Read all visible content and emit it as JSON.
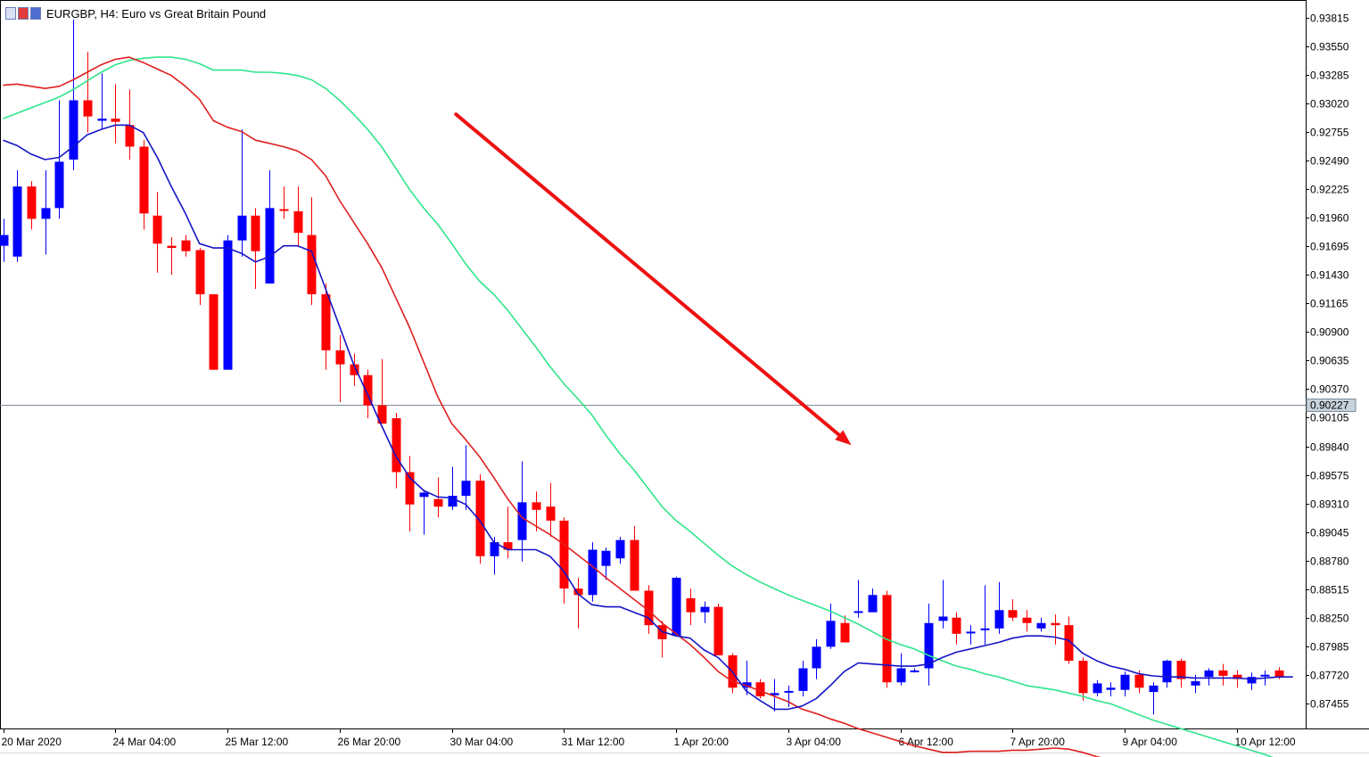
{
  "window": {
    "title": "EURGBP, H4:  Euro vs Great Britain Pound"
  },
  "colors": {
    "bull": "#0000ff",
    "bear": "#ff0000",
    "ma_fast": "#1414c8",
    "ma_mid": "#e01f1f",
    "ma_slow": "#2ee58a",
    "arrow": "#ee1111",
    "grid_axis": "#000000",
    "current_line": "#7d8c99"
  },
  "chart_data": {
    "type": "candlestick",
    "symbol": "EURGBP",
    "timeframe": "H4",
    "current_price": 0.90227,
    "current_price_label": "0.90227",
    "ylim": [
      0.872,
      0.9395
    ],
    "y_ticks": [
      "0.93815",
      "0.93550",
      "0.93285",
      "0.93020",
      "0.92755",
      "0.92490",
      "0.92225",
      "0.91960",
      "0.91695",
      "0.91430",
      "0.91165",
      "0.90900",
      "0.90635",
      "0.90370",
      "0.90105",
      "0.89840",
      "0.89575",
      "0.89310",
      "0.89045",
      "0.88780",
      "0.88515",
      "0.88250",
      "0.87985",
      "0.87720",
      "0.87455"
    ],
    "x_labels": [
      {
        "label": "20 Mar 2020",
        "index": 0
      },
      {
        "label": "24 Mar 04:00",
        "index": 8
      },
      {
        "label": "25 Mar 12:00",
        "index": 16
      },
      {
        "label": "26 Mar 20:00",
        "index": 24
      },
      {
        "label": "30 Mar 04:00",
        "index": 32
      },
      {
        "label": "31 Mar 12:00",
        "index": 40
      },
      {
        "label": "1 Apr 20:00",
        "index": 48
      },
      {
        "label": "3 Apr 04:00",
        "index": 56
      },
      {
        "label": "6 Apr 12:00",
        "index": 64
      },
      {
        "label": "7 Apr 20:00",
        "index": 72
      },
      {
        "label": "9 Apr 04:00",
        "index": 80
      },
      {
        "label": "10 Apr 12:00",
        "index": 88
      }
    ],
    "candles": [
      {
        "o": 0.917,
        "h": 0.9195,
        "l": 0.9155,
        "c": 0.918
      },
      {
        "o": 0.916,
        "h": 0.924,
        "l": 0.9155,
        "c": 0.9225
      },
      {
        "o": 0.9225,
        "h": 0.923,
        "l": 0.9185,
        "c": 0.9195
      },
      {
        "o": 0.9195,
        "h": 0.924,
        "l": 0.9162,
        "c": 0.9205
      },
      {
        "o": 0.9205,
        "h": 0.9305,
        "l": 0.9195,
        "c": 0.9248
      },
      {
        "o": 0.925,
        "h": 0.938,
        "l": 0.924,
        "c": 0.9305
      },
      {
        "o": 0.9305,
        "h": 0.935,
        "l": 0.9275,
        "c": 0.929
      },
      {
        "o": 0.9286,
        "h": 0.933,
        "l": 0.9278,
        "c": 0.9288
      },
      {
        "o": 0.9288,
        "h": 0.932,
        "l": 0.9265,
        "c": 0.9285
      },
      {
        "o": 0.9282,
        "h": 0.9315,
        "l": 0.925,
        "c": 0.9262
      },
      {
        "o": 0.9262,
        "h": 0.9268,
        "l": 0.9185,
        "c": 0.92
      },
      {
        "o": 0.9198,
        "h": 0.922,
        "l": 0.9145,
        "c": 0.9172
      },
      {
        "o": 0.917,
        "h": 0.9178,
        "l": 0.9143,
        "c": 0.9168
      },
      {
        "o": 0.9175,
        "h": 0.918,
        "l": 0.916,
        "c": 0.9165
      },
      {
        "o": 0.9166,
        "h": 0.9168,
        "l": 0.9115,
        "c": 0.9125
      },
      {
        "o": 0.9125,
        "h": 0.9125,
        "l": 0.9055,
        "c": 0.9055
      },
      {
        "o": 0.9055,
        "h": 0.918,
        "l": 0.9055,
        "c": 0.9175
      },
      {
        "o": 0.9175,
        "h": 0.9278,
        "l": 0.916,
        "c": 0.9198
      },
      {
        "o": 0.9198,
        "h": 0.9205,
        "l": 0.913,
        "c": 0.9165
      },
      {
        "o": 0.9135,
        "h": 0.924,
        "l": 0.9135,
        "c": 0.9205
      },
      {
        "o": 0.9204,
        "h": 0.9225,
        "l": 0.9195,
        "c": 0.9203
      },
      {
        "o": 0.9202,
        "h": 0.9225,
        "l": 0.917,
        "c": 0.9182
      },
      {
        "o": 0.918,
        "h": 0.9215,
        "l": 0.9115,
        "c": 0.9125
      },
      {
        "o": 0.9125,
        "h": 0.9135,
        "l": 0.9055,
        "c": 0.9073
      },
      {
        "o": 0.9073,
        "h": 0.9087,
        "l": 0.9025,
        "c": 0.906
      },
      {
        "o": 0.906,
        "h": 0.907,
        "l": 0.904,
        "c": 0.905
      },
      {
        "o": 0.905,
        "h": 0.9055,
        "l": 0.901,
        "c": 0.9022
      },
      {
        "o": 0.9022,
        "h": 0.9065,
        "l": 0.9008,
        "c": 0.9005
      },
      {
        "o": 0.901,
        "h": 0.9015,
        "l": 0.8945,
        "c": 0.896
      },
      {
        "o": 0.896,
        "h": 0.8975,
        "l": 0.8905,
        "c": 0.893
      },
      {
        "o": 0.8937,
        "h": 0.8943,
        "l": 0.8902,
        "c": 0.8941
      },
      {
        "o": 0.8935,
        "h": 0.8955,
        "l": 0.8918,
        "c": 0.8928
      },
      {
        "o": 0.8928,
        "h": 0.8965,
        "l": 0.8925,
        "c": 0.8938
      },
      {
        "o": 0.8938,
        "h": 0.8985,
        "l": 0.8925,
        "c": 0.8952
      },
      {
        "o": 0.8952,
        "h": 0.8958,
        "l": 0.8875,
        "c": 0.8882
      },
      {
        "o": 0.8882,
        "h": 0.89,
        "l": 0.8865,
        "c": 0.8895
      },
      {
        "o": 0.8895,
        "h": 0.8928,
        "l": 0.888,
        "c": 0.8888
      },
      {
        "o": 0.8897,
        "h": 0.897,
        "l": 0.8877,
        "c": 0.8932
      },
      {
        "o": 0.8932,
        "h": 0.8942,
        "l": 0.8905,
        "c": 0.8925
      },
      {
        "o": 0.8928,
        "h": 0.895,
        "l": 0.89,
        "c": 0.8915
      },
      {
        "o": 0.8915,
        "h": 0.8918,
        "l": 0.8838,
        "c": 0.8852
      },
      {
        "o": 0.8852,
        "h": 0.8862,
        "l": 0.8815,
        "c": 0.8846
      },
      {
        "o": 0.8846,
        "h": 0.8895,
        "l": 0.884,
        "c": 0.8888
      },
      {
        "o": 0.8873,
        "h": 0.889,
        "l": 0.886,
        "c": 0.8887
      },
      {
        "o": 0.888,
        "h": 0.89,
        "l": 0.8875,
        "c": 0.8897
      },
      {
        "o": 0.8897,
        "h": 0.891,
        "l": 0.8852,
        "c": 0.885
      },
      {
        "o": 0.885,
        "h": 0.8855,
        "l": 0.881,
        "c": 0.8818
      },
      {
        "o": 0.8818,
        "h": 0.8822,
        "l": 0.8788,
        "c": 0.8805
      },
      {
        "o": 0.8808,
        "h": 0.8863,
        "l": 0.8808,
        "c": 0.8862
      },
      {
        "o": 0.8843,
        "h": 0.8852,
        "l": 0.8818,
        "c": 0.883
      },
      {
        "o": 0.883,
        "h": 0.884,
        "l": 0.882,
        "c": 0.8835
      },
      {
        "o": 0.8835,
        "h": 0.8838,
        "l": 0.879,
        "c": 0.879
      },
      {
        "o": 0.879,
        "h": 0.8792,
        "l": 0.8755,
        "c": 0.876
      },
      {
        "o": 0.876,
        "h": 0.8785,
        "l": 0.8753,
        "c": 0.8765
      },
      {
        "o": 0.8765,
        "h": 0.8768,
        "l": 0.875,
        "c": 0.8752
      },
      {
        "o": 0.8753,
        "h": 0.8768,
        "l": 0.8738,
        "c": 0.8755
      },
      {
        "o": 0.8756,
        "h": 0.8762,
        "l": 0.8742,
        "c": 0.8757
      },
      {
        "o": 0.8757,
        "h": 0.8785,
        "l": 0.8752,
        "c": 0.8778
      },
      {
        "o": 0.8778,
        "h": 0.8805,
        "l": 0.8768,
        "c": 0.8798
      },
      {
        "o": 0.8798,
        "h": 0.8838,
        "l": 0.8796,
        "c": 0.8822
      },
      {
        "o": 0.882,
        "h": 0.8827,
        "l": 0.8802,
        "c": 0.8802
      },
      {
        "o": 0.883,
        "h": 0.886,
        "l": 0.8825,
        "c": 0.8831
      },
      {
        "o": 0.883,
        "h": 0.8852,
        "l": 0.883,
        "c": 0.8846
      },
      {
        "o": 0.8846,
        "h": 0.885,
        "l": 0.876,
        "c": 0.8765
      },
      {
        "o": 0.8765,
        "h": 0.8792,
        "l": 0.8762,
        "c": 0.8778
      },
      {
        "o": 0.8775,
        "h": 0.8778,
        "l": 0.8774,
        "c": 0.8776
      },
      {
        "o": 0.8778,
        "h": 0.8838,
        "l": 0.8762,
        "c": 0.882
      },
      {
        "o": 0.8822,
        "h": 0.886,
        "l": 0.8815,
        "c": 0.8826
      },
      {
        "o": 0.8825,
        "h": 0.883,
        "l": 0.88,
        "c": 0.881
      },
      {
        "o": 0.8812,
        "h": 0.8818,
        "l": 0.88,
        "c": 0.8812
      },
      {
        "o": 0.8814,
        "h": 0.8855,
        "l": 0.88,
        "c": 0.8815
      },
      {
        "o": 0.8815,
        "h": 0.8858,
        "l": 0.881,
        "c": 0.8832
      },
      {
        "o": 0.8832,
        "h": 0.8842,
        "l": 0.8822,
        "c": 0.8825
      },
      {
        "o": 0.8825,
        "h": 0.8832,
        "l": 0.8812,
        "c": 0.882
      },
      {
        "o": 0.8815,
        "h": 0.8825,
        "l": 0.8812,
        "c": 0.882
      },
      {
        "o": 0.882,
        "h": 0.8828,
        "l": 0.88,
        "c": 0.8818
      },
      {
        "o": 0.8818,
        "h": 0.8826,
        "l": 0.8782,
        "c": 0.8785
      },
      {
        "o": 0.8785,
        "h": 0.8788,
        "l": 0.8748,
        "c": 0.8755
      },
      {
        "o": 0.8755,
        "h": 0.8767,
        "l": 0.8752,
        "c": 0.8764
      },
      {
        "o": 0.8758,
        "h": 0.8765,
        "l": 0.8752,
        "c": 0.876
      },
      {
        "o": 0.8758,
        "h": 0.8775,
        "l": 0.8752,
        "c": 0.8772
      },
      {
        "o": 0.8772,
        "h": 0.8776,
        "l": 0.8755,
        "c": 0.876
      },
      {
        "o": 0.8756,
        "h": 0.8765,
        "l": 0.8735,
        "c": 0.8762
      },
      {
        "o": 0.8765,
        "h": 0.8786,
        "l": 0.876,
        "c": 0.8785
      },
      {
        "o": 0.8785,
        "h": 0.8787,
        "l": 0.876,
        "c": 0.8768
      },
      {
        "o": 0.8762,
        "h": 0.8772,
        "l": 0.8755,
        "c": 0.8766
      },
      {
        "o": 0.877,
        "h": 0.8778,
        "l": 0.8762,
        "c": 0.8776
      },
      {
        "o": 0.8776,
        "h": 0.8782,
        "l": 0.8762,
        "c": 0.8771
      },
      {
        "o": 0.8772,
        "h": 0.8776,
        "l": 0.876,
        "c": 0.8768
      },
      {
        "o": 0.8764,
        "h": 0.8774,
        "l": 0.8758,
        "c": 0.877
      },
      {
        "o": 0.8771,
        "h": 0.8776,
        "l": 0.8762,
        "c": 0.8772
      },
      {
        "o": 0.8776,
        "h": 0.8779,
        "l": 0.8768,
        "c": 0.877
      }
    ],
    "ma_fast": [
      0.9268,
      0.9263,
      0.9255,
      0.925,
      0.9252,
      0.9262,
      0.9273,
      0.9278,
      0.9282,
      0.9282,
      0.9275,
      0.9252,
      0.9225,
      0.92,
      0.9172,
      0.9168,
      0.9168,
      0.9163,
      0.9155,
      0.916,
      0.917,
      0.917,
      0.9165,
      0.913,
      0.9095,
      0.906,
      0.9032,
      0.9003,
      0.8975,
      0.8955,
      0.8943,
      0.8937,
      0.8936,
      0.893,
      0.8915,
      0.8895,
      0.8888,
      0.8888,
      0.8888,
      0.8882,
      0.8868,
      0.8847,
      0.8837,
      0.8835,
      0.8835,
      0.883,
      0.8825,
      0.8812,
      0.8808,
      0.8806,
      0.8795,
      0.8788,
      0.8775,
      0.8757,
      0.8748,
      0.874,
      0.874,
      0.8743,
      0.875,
      0.8762,
      0.8775,
      0.8783,
      0.8782,
      0.8781,
      0.878,
      0.878,
      0.8782,
      0.8788,
      0.8793,
      0.8796,
      0.8799,
      0.8802,
      0.8806,
      0.8808,
      0.8808,
      0.8807,
      0.8804,
      0.8792,
      0.8785,
      0.878,
      0.8777,
      0.8773,
      0.8771,
      0.877,
      0.877,
      0.8769,
      0.8769,
      0.8769,
      0.8769,
      0.8768,
      0.8769,
      0.877,
      0.877
    ],
    "ma_mid": [
      0.9319,
      0.932,
      0.9318,
      0.9316,
      0.9318,
      0.9324,
      0.9331,
      0.9338,
      0.9343,
      0.9345,
      0.934,
      0.9334,
      0.9328,
      0.9318,
      0.9306,
      0.9286,
      0.928,
      0.9276,
      0.9268,
      0.9265,
      0.9262,
      0.9258,
      0.925,
      0.9235,
      0.9212,
      0.9192,
      0.9172,
      0.915,
      0.9122,
      0.9094,
      0.9062,
      0.903,
      0.9005,
      0.899,
      0.8974,
      0.8955,
      0.8935,
      0.8918,
      0.891,
      0.8902,
      0.8893,
      0.8883,
      0.8873,
      0.8862,
      0.8852,
      0.8842,
      0.8832,
      0.882,
      0.881,
      0.88,
      0.8788,
      0.8775,
      0.8766,
      0.8762,
      0.8757,
      0.8752,
      0.8747,
      0.874,
      0.8736,
      0.8731,
      0.8727,
      0.8722,
      0.8718,
      0.8714,
      0.871,
      0.8706,
      0.8703,
      0.87,
      0.87,
      0.8701,
      0.8701,
      0.8701,
      0.8702,
      0.8702,
      0.8703,
      0.8704,
      0.8703,
      0.87,
      0.8696,
      0.8693,
      0.869,
      0.8688,
      0.8686,
      0.8683,
      0.8681,
      0.8679,
      0.8677,
      0.8676,
      0.8675,
      0.8674,
      0.8673,
      0.8672,
      0.8671
    ],
    "ma_slow": [
      0.9288,
      0.9293,
      0.9298,
      0.9303,
      0.9308,
      0.9315,
      0.9323,
      0.9331,
      0.9338,
      0.9342,
      0.9344,
      0.9345,
      0.9345,
      0.9343,
      0.9339,
      0.9333,
      0.9333,
      0.9333,
      0.9331,
      0.9331,
      0.933,
      0.9328,
      0.9324,
      0.9316,
      0.9305,
      0.9292,
      0.9278,
      0.9262,
      0.9242,
      0.9222,
      0.9205,
      0.919,
      0.9172,
      0.9153,
      0.9137,
      0.9125,
      0.911,
      0.9093,
      0.9076,
      0.9058,
      0.9042,
      0.9028,
      0.9013,
      0.8994,
      0.8977,
      0.8962,
      0.8945,
      0.8928,
      0.8915,
      0.8905,
      0.8894,
      0.8883,
      0.8873,
      0.8865,
      0.8858,
      0.8852,
      0.8846,
      0.8841,
      0.8836,
      0.8831,
      0.8825,
      0.8819,
      0.8812,
      0.8805,
      0.88,
      0.8796,
      0.879,
      0.8785,
      0.878,
      0.8777,
      0.8773,
      0.877,
      0.8766,
      0.8762,
      0.876,
      0.8758,
      0.8755,
      0.8752,
      0.8748,
      0.8745,
      0.874,
      0.8735,
      0.873,
      0.8726,
      0.8722,
      0.8718,
      0.8714,
      0.871,
      0.8706,
      0.8702,
      0.8698,
      0.8693,
      0.8688
    ],
    "annotation_arrow": {
      "start": {
        "index": 32.3,
        "price": 0.9292
      },
      "end": {
        "index": 60.5,
        "price": 0.8985
      }
    }
  }
}
